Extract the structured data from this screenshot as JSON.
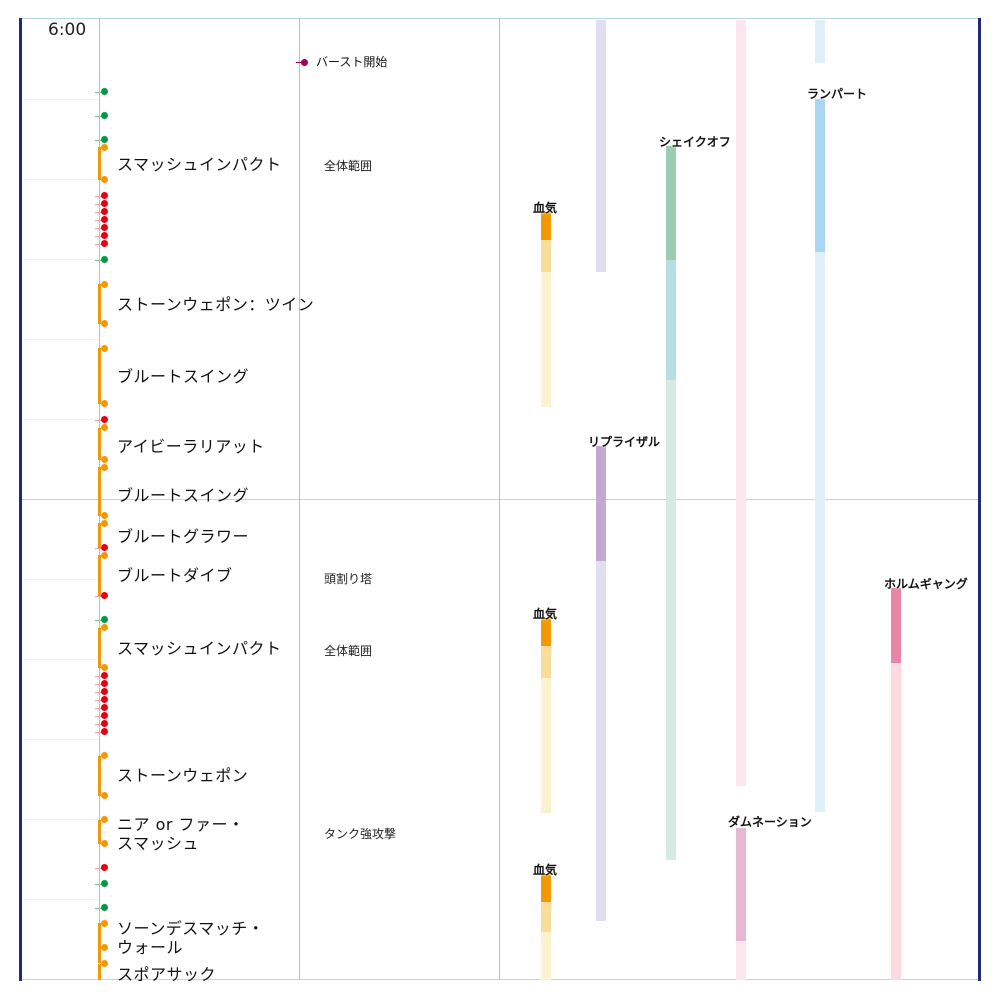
{
  "timeline": {
    "start_time": "6:00",
    "burst_label": "バースト開始",
    "skills": [
      {
        "label": "スマッシュインパクト",
        "note": "全体範囲"
      },
      {
        "label": "ストーンウェポン：ツイン",
        "note": ""
      },
      {
        "label": "ブルートスイング",
        "note": ""
      },
      {
        "label": "アイビーラリアット",
        "note": ""
      },
      {
        "label": "ブルートスイング",
        "note": ""
      },
      {
        "label": "ブルートグラワー",
        "note": ""
      },
      {
        "label": "ブルートダイブ",
        "note": "頭割り塔"
      },
      {
        "label": "スマッシュインパクト",
        "note": "全体範囲"
      },
      {
        "label": "ストーンウェポン",
        "note": ""
      },
      {
        "label": "ニア or ファー・\nスマッシュ",
        "note": "タンク強攻撃"
      },
      {
        "label": "ソーンデスマッチ・\nウォール",
        "note": ""
      },
      {
        "label": "スポアサック",
        "note": ""
      }
    ],
    "buffs": [
      {
        "label": "血気"
      },
      {
        "label": "血気"
      },
      {
        "label": "血気"
      },
      {
        "label": "シェイクオフ"
      },
      {
        "label": "ランパート"
      },
      {
        "label": "リプライザル"
      },
      {
        "label": "ホルムギャング"
      },
      {
        "label": "ダムネーション"
      }
    ]
  },
  "colors": {
    "frame": "#1f2a7a",
    "cast": "#f39800",
    "damage_dot": "#e60012",
    "auto_dot": "#009944",
    "burst_dot": "#a0005a",
    "bloodwhetting": "#f39800",
    "shake_off": "#8fc8a6",
    "rampart": "#a9d6f1",
    "reprisal": "#c3a8d4",
    "holmgang": "#e985a8",
    "damnation": "#e7b8d3"
  }
}
